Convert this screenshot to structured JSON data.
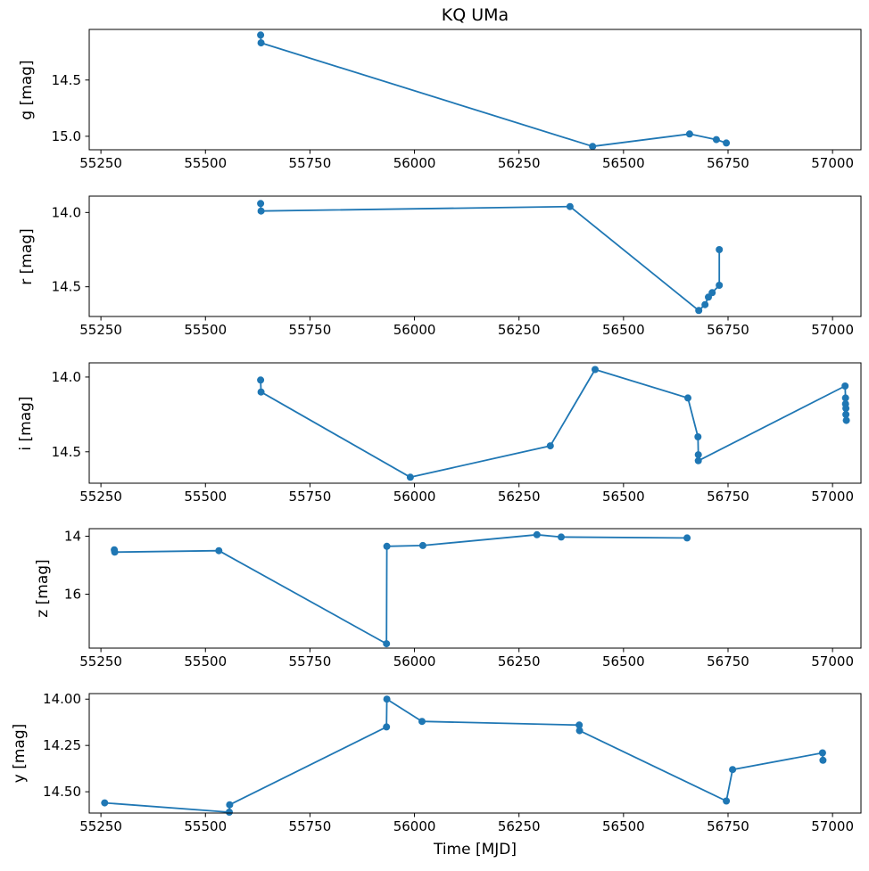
{
  "chart_data": {
    "type": "line",
    "title": "KQ UMa",
    "xlabel": "Time [MJD]",
    "series_color": "#1f77b4",
    "axis_color": "#000000",
    "grid": false,
    "y_axis_inverted": true,
    "marker": "circle",
    "xlim": [
      55222,
      57068
    ],
    "xticks": [
      {
        "label": "55250",
        "value": 55250
      },
      {
        "label": "55500",
        "value": 55500
      },
      {
        "label": "55750",
        "value": 55750
      },
      {
        "label": "56000",
        "value": 56000
      },
      {
        "label": "56250",
        "value": 56250
      },
      {
        "label": "56500",
        "value": 56500
      },
      {
        "label": "56750",
        "value": 56750
      },
      {
        "label": "57000",
        "value": 57000
      }
    ],
    "panels": [
      {
        "band": "g",
        "ylabel": "g [mag]",
        "ylim": [
          14.05,
          15.12
        ],
        "yticks": [
          {
            "label": "14.5",
            "value": 14.5
          },
          {
            "label": "15.0",
            "value": 15.0
          }
        ],
        "x": [
          55632,
          55633,
          56426,
          56658,
          56722,
          56746
        ],
        "y": [
          14.1,
          14.17,
          15.09,
          14.98,
          15.03,
          15.06
        ]
      },
      {
        "band": "r",
        "ylabel": "r [mag]",
        "ylim": [
          13.89,
          14.7
        ],
        "yticks": [
          {
            "label": "14.0",
            "value": 14.0
          },
          {
            "label": "14.5",
            "value": 14.5
          }
        ],
        "x": [
          55632,
          55633,
          56372,
          56680,
          56695,
          56703,
          56712,
          56729,
          56729
        ],
        "y": [
          13.94,
          13.99,
          13.96,
          14.66,
          14.62,
          14.57,
          14.54,
          14.49,
          14.25
        ]
      },
      {
        "band": "i",
        "ylabel": "i [mag]",
        "ylim": [
          13.905,
          14.71
        ],
        "yticks": [
          {
            "label": "14.0",
            "value": 14.0
          },
          {
            "label": "14.5",
            "value": 14.5
          }
        ],
        "x": [
          55632,
          55633,
          55990,
          56325,
          56432,
          56654,
          56678,
          56679,
          56679,
          57030,
          57031,
          57031,
          57032,
          57032,
          57033
        ],
        "y": [
          14.02,
          14.1,
          14.67,
          14.46,
          13.95,
          14.14,
          14.4,
          14.52,
          14.56,
          14.06,
          14.14,
          14.18,
          14.21,
          14.25,
          14.29
        ]
      },
      {
        "band": "z",
        "ylabel": "z [mag]",
        "ylim": [
          13.74,
          17.86
        ],
        "yticks": [
          {
            "label": "14",
            "value": 14
          },
          {
            "label": "16",
            "value": 16
          }
        ],
        "x": [
          55282,
          55283,
          55532,
          55933,
          55934,
          56020,
          56293,
          56351,
          56652
        ],
        "y": [
          14.47,
          14.55,
          14.5,
          17.71,
          14.35,
          14.32,
          13.95,
          14.03,
          14.06
        ]
      },
      {
        "band": "y",
        "ylabel": "y [mag]",
        "ylim": [
          13.97,
          14.615
        ],
        "yticks": [
          {
            "label": "14.00",
            "value": 14.0
          },
          {
            "label": "14.25",
            "value": 14.25
          },
          {
            "label": "14.50",
            "value": 14.5
          }
        ],
        "x": [
          55259,
          55557,
          55558,
          55933,
          55934,
          56018,
          56394,
          56395,
          56746,
          56761,
          56976,
          56977
        ],
        "y": [
          14.56,
          14.61,
          14.57,
          14.15,
          14.0,
          14.12,
          14.14,
          14.17,
          14.55,
          14.38,
          14.29,
          14.33
        ]
      }
    ]
  }
}
